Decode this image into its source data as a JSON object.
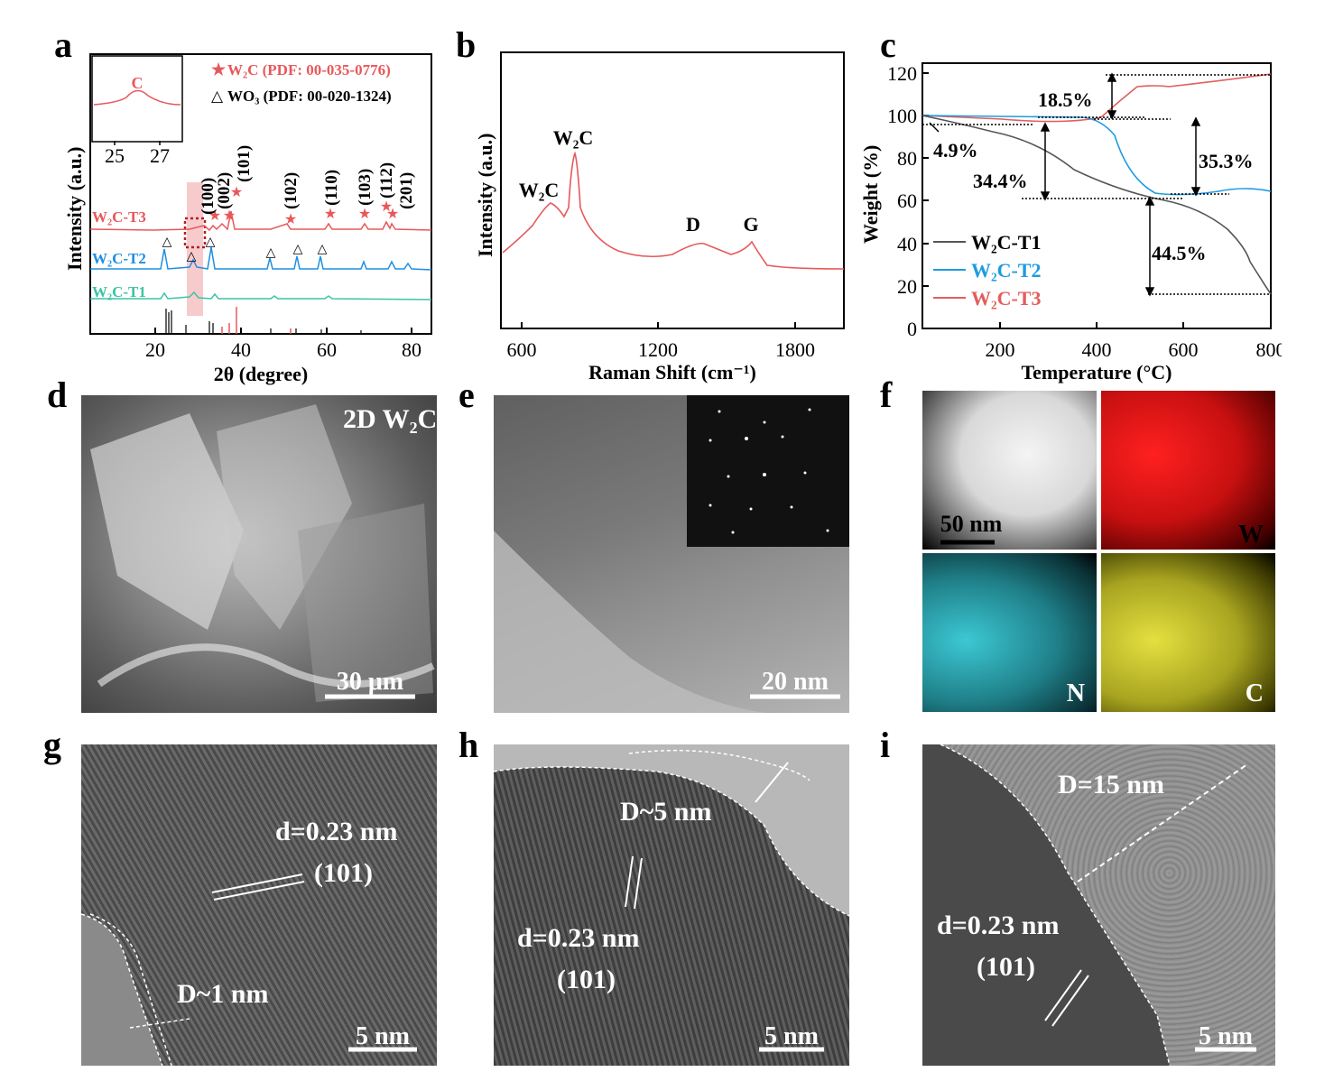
{
  "panels": {
    "a": "a",
    "b": "b",
    "c": "c",
    "d": "d",
    "e": "e",
    "f": "f",
    "g": "g",
    "h": "h",
    "i": "i"
  },
  "panel_a": {
    "legend_w2c": "W₂C (PDF: 00-035-0776)",
    "legend_wo3": "WO₃ (PDF: 00-020-1324)",
    "inset_label": "C",
    "inset_ticks": [
      "25",
      "27"
    ],
    "ylabel": "Intensity (a.u.)",
    "xlabel": "2θ (degree)",
    "xticks": [
      "20",
      "40",
      "60",
      "80"
    ],
    "series": [
      "W₂C-T3",
      "W₂C-T2",
      "W₂C-T1"
    ],
    "peaks": [
      "(100)",
      "(002)",
      "(101)",
      "(102)",
      "(110)",
      "(103)",
      "(112)",
      "(201)"
    ],
    "colors": {
      "T1": "#3cc4a4",
      "T2": "#1f8fe0",
      "T3": "#e8585a"
    }
  },
  "panel_b": {
    "ylabel": "Intensity (a.u.)",
    "xlabel": "Raman Shift (cm⁻¹)",
    "xticks": [
      "600",
      "1200",
      "1800"
    ],
    "labels": [
      "W₂C",
      "W₂C",
      "D",
      "G"
    ]
  },
  "panel_c": {
    "ylabel": "Weight (%)",
    "xlabel": "Temperature (°C)",
    "xticks": [
      "200",
      "400",
      "600",
      "800"
    ],
    "yticks": [
      "0",
      "20",
      "40",
      "60",
      "80",
      "100",
      "120"
    ],
    "legend": [
      "W₂C-T1",
      "W₂C-T2",
      "W₂C-T3"
    ],
    "annotations": [
      "18.5%",
      "4.9%",
      "34.4%",
      "35.3%",
      "44.5%"
    ],
    "colors": {
      "T1": "#555555",
      "T2": "#1e9be0",
      "T3": "#e35d5d"
    }
  },
  "panel_d": {
    "title": "2D W₂C",
    "scale": "30 μm"
  },
  "panel_e": {
    "scale": "20 nm"
  },
  "panel_f": {
    "scale": "50 nm",
    "maps": [
      "W",
      "N",
      "C"
    ]
  },
  "panel_g": {
    "d_spacing": "d=0.23 nm",
    "plane": "(101)",
    "thickness": "D~1 nm",
    "scale": "5 nm"
  },
  "panel_h": {
    "d_spacing": "d=0.23 nm",
    "plane": "(101)",
    "thickness": "D~5 nm",
    "scale": "5 nm"
  },
  "panel_i": {
    "d_spacing": "d=0.23 nm",
    "plane": "(101)",
    "thickness": "D=15 nm",
    "scale": "5 nm"
  }
}
